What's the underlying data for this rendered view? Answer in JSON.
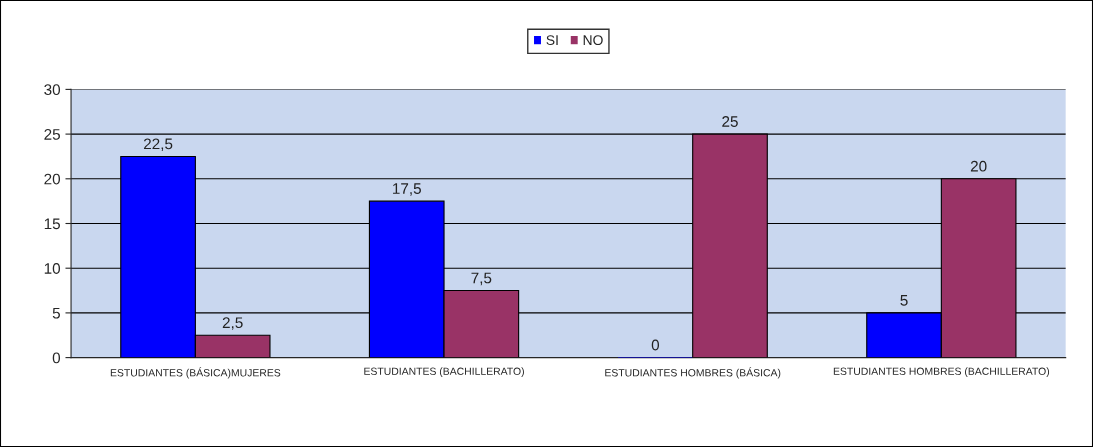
{
  "chart_data": {
    "type": "bar",
    "categories": [
      "ESTUDIANTES (BÁSICA)MUJERES",
      "ESTUDIANTES (BACHILLERATO)",
      "ESTUDIANTES HOMBRES (BÁSICA)",
      "ESTUDIANTES HOMBRES (BACHILLERATO)"
    ],
    "series": [
      {
        "name": "SI",
        "color": "#0000ff",
        "values": [
          22.5,
          17.5,
          0,
          5
        ],
        "value_labels": [
          "22,5",
          "17,5",
          "0",
          "5"
        ]
      },
      {
        "name": "NO",
        "color": "#993366",
        "values": [
          2.5,
          7.5,
          25,
          20
        ],
        "value_labels": [
          "2,5",
          "7,5",
          "25",
          "20"
        ]
      }
    ],
    "ylim": [
      0,
      30
    ],
    "yticks": [
      0,
      5,
      10,
      15,
      20,
      25,
      30
    ],
    "grid": "y",
    "legend": "top"
  }
}
